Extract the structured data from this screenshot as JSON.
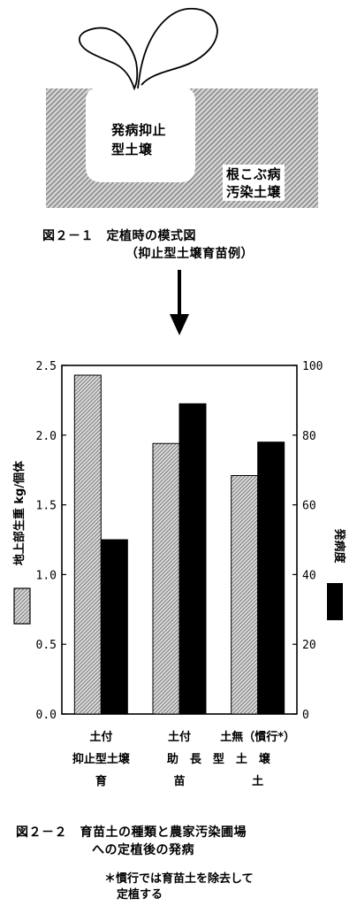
{
  "figure1": {
    "inner_label_1": "発病抑止",
    "inner_label_2": "型土壌",
    "outer_label_1": "根こぶ病",
    "outer_label_2": "汚染土壌",
    "caption_1": "図２－１　定植時の模式図",
    "caption_2": "（抑止型土壌育苗例）"
  },
  "figure2": {
    "caption_1": "図２－２　育苗土の種類と農家汚染圃場",
    "caption_2": "への定植後の発病",
    "note_1": "＊慣行では育苗土を除去して",
    "note_2": "定植する"
  },
  "chart_data": {
    "type": "bar",
    "categories": [
      "土付",
      "土付",
      "土無（慣行*）"
    ],
    "category_row2": [
      "抑止型土壌",
      "助　長　型　土　壌"
    ],
    "category_row3": [
      "育",
      "苗",
      "土"
    ],
    "series": [
      {
        "name": "地上部生重 kg/個体",
        "axis": "left",
        "values": [
          2.43,
          1.94,
          1.71
        ],
        "pattern": "hatched"
      },
      {
        "name": "発病度",
        "axis": "right",
        "values": [
          50,
          89,
          78
        ],
        "pattern": "solid"
      }
    ],
    "left_axis": {
      "label": "地上部生重 kg/個体",
      "ylim": [
        0,
        2.5
      ],
      "ticks": [
        "0.0",
        "0.5",
        "1.0",
        "1.5",
        "2.0",
        "2.5"
      ]
    },
    "right_axis": {
      "label": "発病度",
      "ylim": [
        0,
        100
      ],
      "ticks": [
        "0",
        "20",
        "40",
        "60",
        "80",
        "100"
      ]
    }
  }
}
